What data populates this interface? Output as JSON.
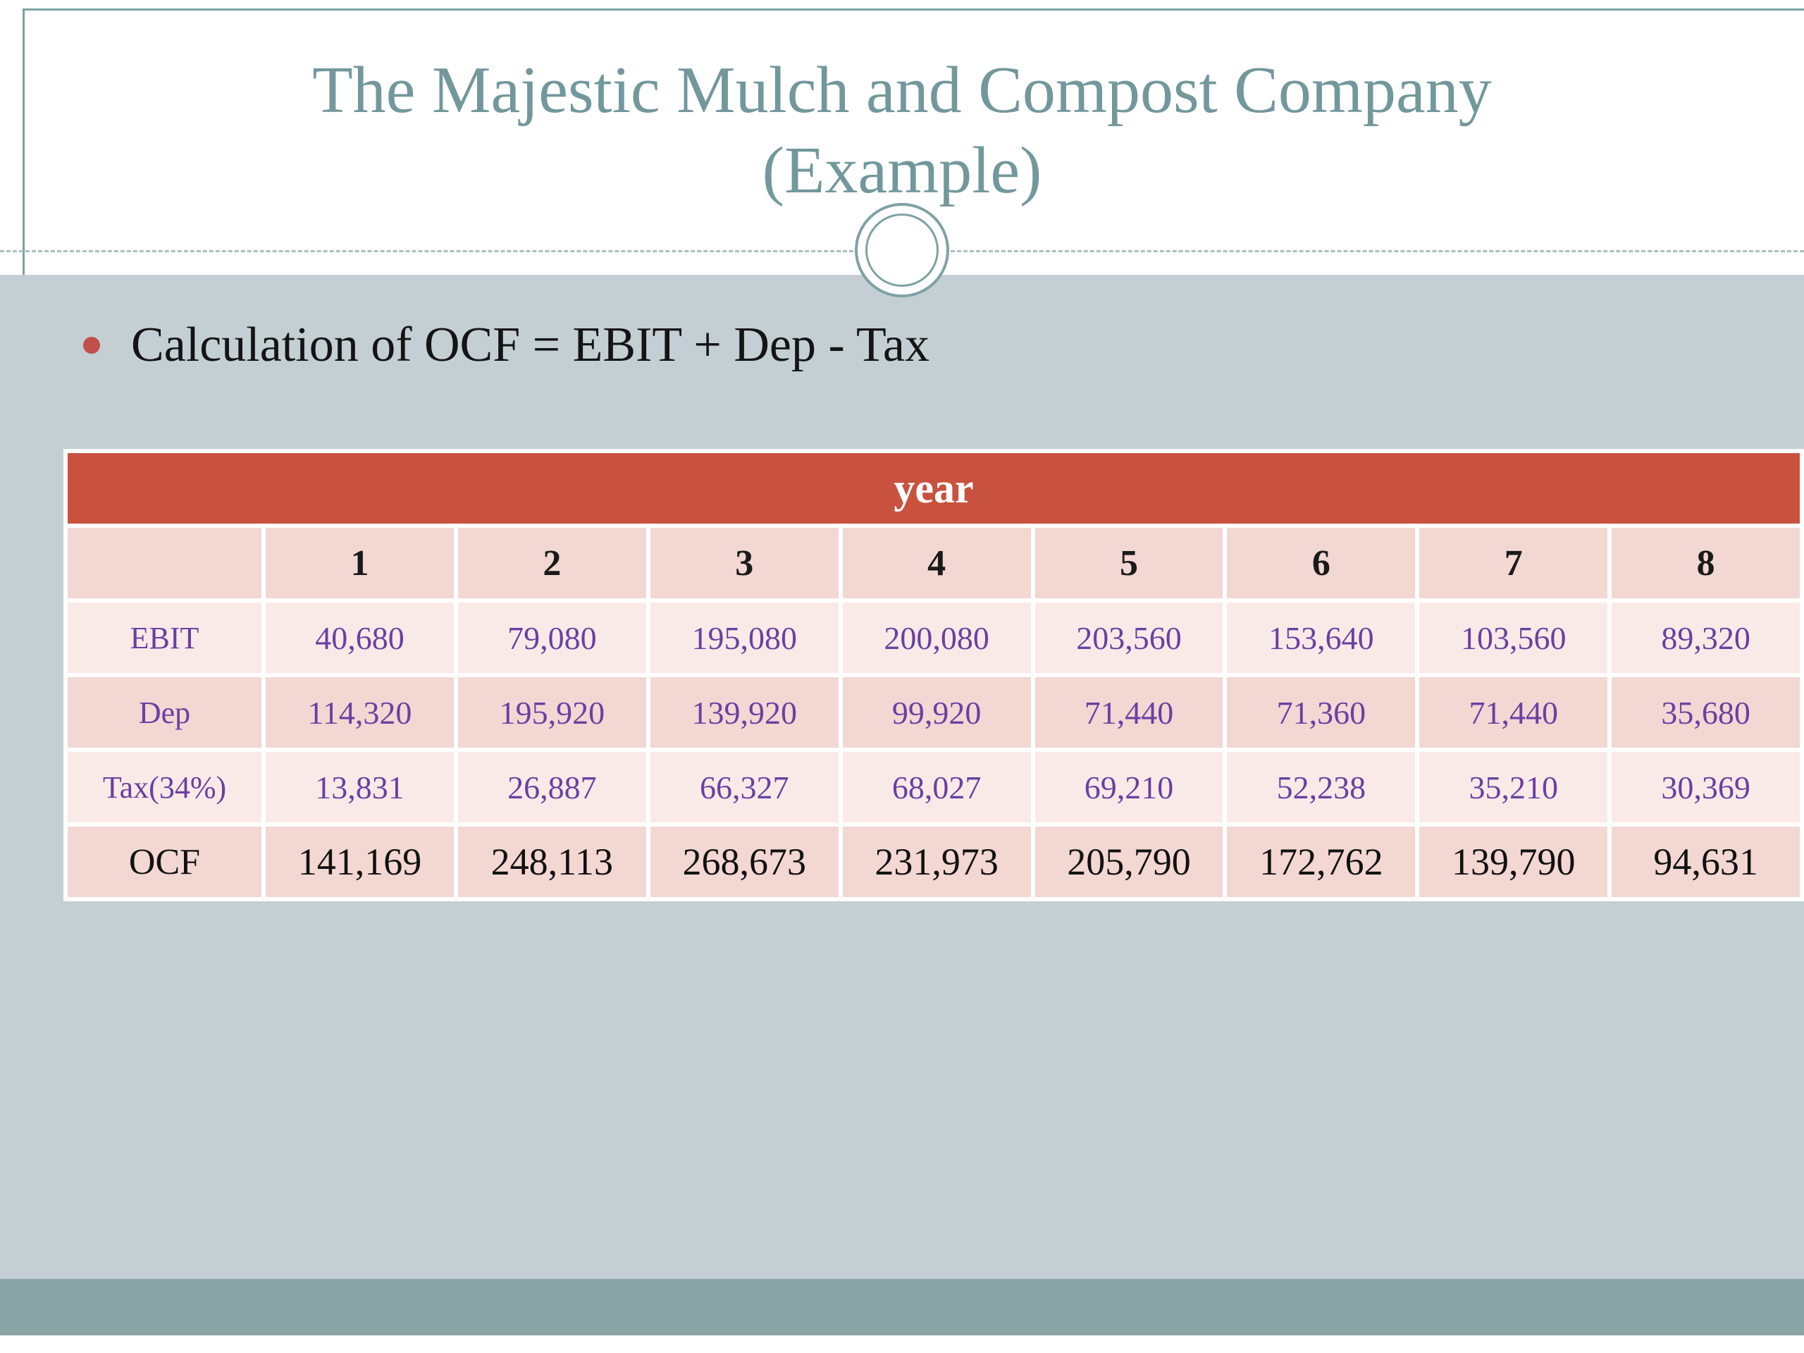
{
  "slide": {
    "title_line1": "The Majestic Mulch and Compost Company",
    "title_line2": "(Example)",
    "bullet_text": "Calculation of OCF = EBIT + Dep - Tax"
  },
  "colors": {
    "title_teal": "#72989c",
    "accent_red": "#c9523f",
    "bullet_red": "#c0504d",
    "content_bg": "#c4cfd3",
    "footer_bar": "#8aa5a6",
    "row_pink": "#f2d7d3",
    "row_light": "#faeae7",
    "number_purple": "#6b3fa3"
  },
  "chart_data": {
    "type": "table",
    "title": "year",
    "columns": [
      "1",
      "2",
      "3",
      "4",
      "5",
      "6",
      "7",
      "8"
    ],
    "rows": [
      {
        "label": "EBIT",
        "values": [
          "40,680",
          "79,080",
          "195,080",
          "200,080",
          "203,560",
          "153,640",
          "103,560",
          "89,320"
        ]
      },
      {
        "label": "Dep",
        "values": [
          "114,320",
          "195,920",
          "139,920",
          "99,920",
          "71,440",
          "71,360",
          "71,440",
          "35,680"
        ]
      },
      {
        "label": "Tax(34%)",
        "values": [
          "13,831",
          "26,887",
          "66,327",
          "68,027",
          "69,210",
          "52,238",
          "35,210",
          "30,369"
        ]
      },
      {
        "label": "OCF",
        "values": [
          "141,169",
          "248,113",
          "268,673",
          "231,973",
          "205,790",
          "172,762",
          "139,790",
          "94,631"
        ]
      }
    ]
  }
}
